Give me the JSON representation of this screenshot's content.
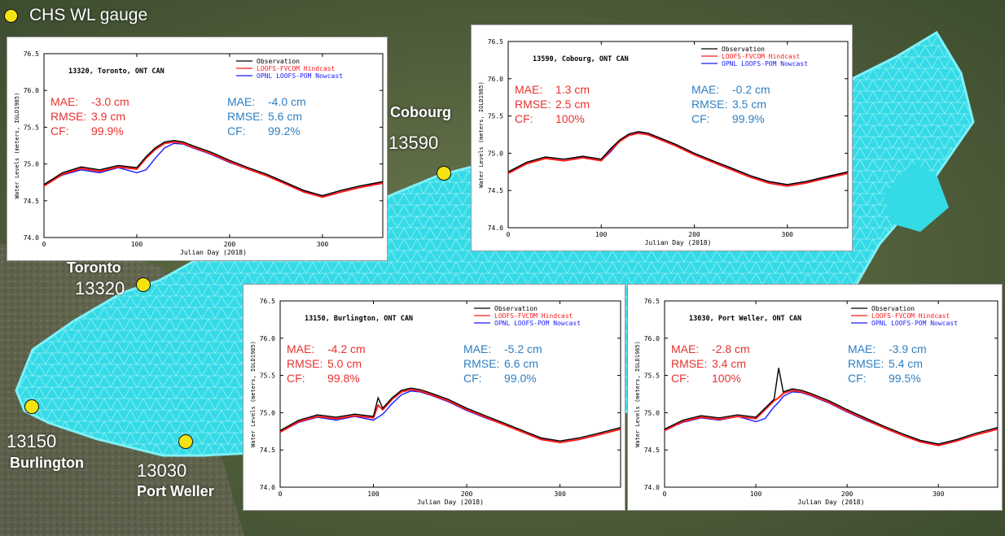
{
  "legend": {
    "dot_label": "CHS WL gauge",
    "dot_color": "#f4e313"
  },
  "stations": [
    {
      "id": "13590",
      "name": "Cobourg"
    },
    {
      "id": "13320",
      "name": "Toronto"
    },
    {
      "id": "13150",
      "name": "Burlington"
    },
    {
      "id": "13030",
      "name": "Port Weller"
    }
  ],
  "colors": {
    "observation": "#000000",
    "hindcast": "#ff1a1a",
    "nowcast": "#1a1aff",
    "stats_left": "#e8322f",
    "stats_right": "#2f7fc1",
    "mesh": "#33dbe8"
  },
  "chart_data": [
    {
      "type": "line",
      "title": "13320, Toronto, ONT CAN",
      "xlabel": "Julian Day (2018)",
      "ylabel": "Water Levels (meters, IGLD1985)",
      "xlim": [
        0,
        365
      ],
      "ylim": [
        74.0,
        76.5
      ],
      "xticks": [
        0,
        100,
        200,
        300
      ],
      "yticks": [
        "74.0",
        "74.5",
        "75.0",
        "75.5",
        "76.0",
        "76.5"
      ],
      "legend_position": "top-right",
      "series": [
        {
          "name": "Observation",
          "x": [
            0,
            20,
            40,
            60,
            80,
            100,
            110,
            120,
            130,
            140,
            150,
            160,
            180,
            200,
            220,
            240,
            260,
            280,
            300,
            320,
            340,
            365
          ],
          "values": [
            74.72,
            74.88,
            74.96,
            74.92,
            74.98,
            74.95,
            75.1,
            75.22,
            75.3,
            75.32,
            75.3,
            75.25,
            75.16,
            75.05,
            74.95,
            74.86,
            74.75,
            74.64,
            74.57,
            74.64,
            74.7,
            74.76
          ]
        },
        {
          "name": "LOOFS-FVCOM Hindcast",
          "x": [
            0,
            20,
            40,
            60,
            80,
            100,
            110,
            120,
            130,
            140,
            150,
            160,
            180,
            200,
            220,
            240,
            260,
            280,
            300,
            320,
            340,
            365
          ],
          "values": [
            74.7,
            74.86,
            74.94,
            74.9,
            74.96,
            74.93,
            75.08,
            75.2,
            75.28,
            75.3,
            75.28,
            75.23,
            75.14,
            75.03,
            74.93,
            74.84,
            74.73,
            74.62,
            74.55,
            74.62,
            74.68,
            74.74
          ]
        },
        {
          "name": "OPNL LOOFS-POM Nowcast",
          "x": [
            0,
            20,
            40,
            60,
            80,
            100,
            110,
            120,
            130,
            140,
            150,
            160,
            180,
            200,
            220,
            240,
            260,
            280,
            300,
            320,
            340,
            365
          ],
          "values": [
            74.72,
            74.85,
            74.92,
            74.88,
            74.95,
            74.88,
            74.92,
            75.08,
            75.22,
            75.28,
            75.27,
            75.22,
            75.13,
            75.02,
            74.93,
            74.84,
            74.74,
            74.63,
            74.56,
            74.62,
            74.68,
            74.75
          ]
        }
      ],
      "stats": {
        "left": [
          {
            "label": "MAE:",
            "value": "-3.0 cm"
          },
          {
            "label": "RMSE:",
            "value": "3.9 cm"
          },
          {
            "label": "CF:",
            "value": "99.9%"
          }
        ],
        "right": [
          {
            "label": "MAE:",
            "value": "-4.0 cm"
          },
          {
            "label": "RMSE:",
            "value": "5.6 cm"
          },
          {
            "label": "CF:",
            "value": "99.2%"
          }
        ]
      }
    },
    {
      "type": "line",
      "title": "13590, Cobourg, ONT CAN",
      "xlabel": "Julian Day (2018)",
      "ylabel": "Water Levels (meters, IGLD1985)",
      "xlim": [
        0,
        365
      ],
      "ylim": [
        74.0,
        76.5
      ],
      "xticks": [
        0,
        100,
        200,
        300
      ],
      "yticks": [
        "74.0",
        "74.5",
        "75.0",
        "75.5",
        "76.0",
        "76.5"
      ],
      "legend_position": "top-right",
      "series": [
        {
          "name": "Observation",
          "x": [
            0,
            20,
            40,
            60,
            80,
            100,
            110,
            120,
            130,
            140,
            150,
            160,
            180,
            200,
            220,
            240,
            260,
            280,
            300,
            320,
            340,
            365
          ],
          "values": [
            74.75,
            74.88,
            74.95,
            74.92,
            74.96,
            74.92,
            75.06,
            75.18,
            75.26,
            75.29,
            75.27,
            75.22,
            75.12,
            75.0,
            74.9,
            74.8,
            74.7,
            74.62,
            74.58,
            74.62,
            74.68,
            74.75
          ]
        },
        {
          "name": "LOOFS-FVCOM Hindcast",
          "x": [
            0,
            20,
            40,
            60,
            80,
            100,
            110,
            120,
            130,
            140,
            150,
            160,
            180,
            200,
            220,
            240,
            260,
            280,
            300,
            320,
            340,
            365
          ],
          "values": [
            74.73,
            74.86,
            74.93,
            74.9,
            74.94,
            74.9,
            75.04,
            75.16,
            75.24,
            75.27,
            75.25,
            75.2,
            75.1,
            74.98,
            74.88,
            74.78,
            74.68,
            74.6,
            74.56,
            74.6,
            74.66,
            74.73
          ]
        },
        {
          "name": "OPNL LOOFS-POM Nowcast",
          "x": [
            0,
            20,
            40,
            60,
            80,
            100,
            110,
            120,
            130,
            140,
            150,
            160,
            180,
            200,
            220,
            240,
            260,
            280,
            300,
            320,
            340,
            365
          ],
          "values": [
            74.74,
            74.86,
            74.93,
            74.9,
            74.95,
            74.9,
            75.02,
            75.16,
            75.25,
            75.28,
            75.26,
            75.21,
            75.11,
            74.99,
            74.89,
            74.8,
            74.7,
            74.62,
            74.58,
            74.62,
            74.67,
            74.74
          ]
        }
      ],
      "stats": {
        "left": [
          {
            "label": "MAE:",
            "value": "1.3 cm"
          },
          {
            "label": "RMSE:",
            "value": "2.5 cm"
          },
          {
            "label": "CF:",
            "value": "100%"
          }
        ],
        "right": [
          {
            "label": "MAE:",
            "value": "-0.2 cm"
          },
          {
            "label": "RMSE:",
            "value": "3.5 cm"
          },
          {
            "label": "CF:",
            "value": "99.9%"
          }
        ]
      }
    },
    {
      "type": "line",
      "title": "13150, Burlington, ONT CAN",
      "xlabel": "Julian Day (2018)",
      "ylabel": "Water Levels (meters, IGLD1985)",
      "xlim": [
        0,
        365
      ],
      "ylim": [
        74.0,
        76.5
      ],
      "xticks": [
        0,
        100,
        200,
        300
      ],
      "yticks": [
        "74.0",
        "74.5",
        "75.0",
        "75.5",
        "76.0",
        "76.5"
      ],
      "legend_position": "top-right",
      "series": [
        {
          "name": "Observation",
          "x": [
            0,
            20,
            40,
            60,
            80,
            100,
            105,
            110,
            120,
            130,
            140,
            150,
            160,
            180,
            200,
            220,
            240,
            260,
            280,
            300,
            320,
            340,
            365
          ],
          "values": [
            74.76,
            74.9,
            74.97,
            74.94,
            74.98,
            74.95,
            75.2,
            75.06,
            75.2,
            75.3,
            75.33,
            75.31,
            75.27,
            75.18,
            75.06,
            74.96,
            74.86,
            74.76,
            74.66,
            74.62,
            74.66,
            74.72,
            74.8
          ]
        },
        {
          "name": "LOOFS-FVCOM Hindcast",
          "x": [
            0,
            20,
            40,
            60,
            80,
            100,
            105,
            110,
            120,
            130,
            140,
            150,
            160,
            180,
            200,
            220,
            240,
            260,
            280,
            300,
            320,
            340,
            365
          ],
          "values": [
            74.74,
            74.88,
            74.95,
            74.92,
            74.96,
            74.93,
            75.1,
            75.04,
            75.18,
            75.28,
            75.31,
            75.29,
            75.25,
            75.16,
            75.04,
            74.94,
            74.84,
            74.74,
            74.64,
            74.6,
            74.64,
            74.7,
            74.78
          ]
        },
        {
          "name": "OPNL LOOFS-POM Nowcast",
          "x": [
            0,
            20,
            40,
            60,
            80,
            100,
            105,
            110,
            120,
            130,
            140,
            150,
            160,
            180,
            200,
            220,
            240,
            260,
            280,
            300,
            320,
            340,
            365
          ],
          "values": [
            74.74,
            74.87,
            74.94,
            74.9,
            74.95,
            74.9,
            74.94,
            74.98,
            75.12,
            75.24,
            75.29,
            75.28,
            75.24,
            75.15,
            75.03,
            74.93,
            74.84,
            74.74,
            74.65,
            74.6,
            74.64,
            74.7,
            74.78
          ]
        }
      ],
      "stats": {
        "left": [
          {
            "label": "MAE:",
            "value": "-4.2 cm"
          },
          {
            "label": "RMSE:",
            "value": "5.0 cm"
          },
          {
            "label": "CF:",
            "value": "99.8%"
          }
        ],
        "right": [
          {
            "label": "MAE:",
            "value": "-5.2 cm"
          },
          {
            "label": "RMSE:",
            "value": "6.6 cm"
          },
          {
            "label": "CF:",
            "value": "99.0%"
          }
        ]
      }
    },
    {
      "type": "line",
      "title": "13030, Port Weller, ONT CAN",
      "xlabel": "Julian Day (2018)",
      "ylabel": "Water Levels (meters, IGLD1985)",
      "xlim": [
        0,
        365
      ],
      "ylim": [
        74.0,
        76.5
      ],
      "xticks": [
        0,
        100,
        200,
        300
      ],
      "yticks": [
        "74.0",
        "74.5",
        "75.0",
        "75.5",
        "76.0",
        "76.5"
      ],
      "legend_position": "top-right",
      "series": [
        {
          "name": "Observation",
          "x": [
            0,
            20,
            40,
            60,
            80,
            100,
            110,
            120,
            125,
            130,
            140,
            150,
            160,
            180,
            200,
            220,
            240,
            260,
            280,
            300,
            320,
            340,
            365
          ],
          "values": [
            74.78,
            74.9,
            74.96,
            74.93,
            74.97,
            74.94,
            75.06,
            75.18,
            75.6,
            75.28,
            75.32,
            75.3,
            75.26,
            75.16,
            75.04,
            74.93,
            74.82,
            74.72,
            74.63,
            74.58,
            74.64,
            74.72,
            74.8
          ]
        },
        {
          "name": "LOOFS-FVCOM Hindcast",
          "x": [
            0,
            20,
            40,
            60,
            80,
            100,
            110,
            120,
            125,
            130,
            140,
            150,
            160,
            180,
            200,
            220,
            240,
            260,
            280,
            300,
            320,
            340,
            365
          ],
          "values": [
            74.76,
            74.88,
            74.94,
            74.91,
            74.95,
            74.92,
            75.04,
            75.16,
            75.2,
            75.26,
            75.3,
            75.28,
            75.24,
            75.14,
            75.02,
            74.91,
            74.8,
            74.7,
            74.61,
            74.56,
            74.62,
            74.7,
            74.78
          ]
        },
        {
          "name": "OPNL LOOFS-POM Nowcast",
          "x": [
            0,
            20,
            40,
            60,
            80,
            100,
            110,
            120,
            125,
            130,
            140,
            150,
            160,
            180,
            200,
            220,
            240,
            260,
            280,
            300,
            320,
            340,
            365
          ],
          "values": [
            74.77,
            74.87,
            74.93,
            74.9,
            74.95,
            74.88,
            74.92,
            75.08,
            75.14,
            75.22,
            75.28,
            75.27,
            75.23,
            75.13,
            75.01,
            74.9,
            74.8,
            74.7,
            74.62,
            74.57,
            74.62,
            74.7,
            74.78
          ]
        }
      ],
      "stats": {
        "left": [
          {
            "label": "MAE:",
            "value": "-2.8 cm"
          },
          {
            "label": "RMSE:",
            "value": "3.4 cm"
          },
          {
            "label": "CF:",
            "value": "100%"
          }
        ],
        "right": [
          {
            "label": "MAE:",
            "value": "-3.9 cm"
          },
          {
            "label": "RMSE:",
            "value": "5.4 cm"
          },
          {
            "label": "CF:",
            "value": "99.5%"
          }
        ]
      }
    }
  ]
}
